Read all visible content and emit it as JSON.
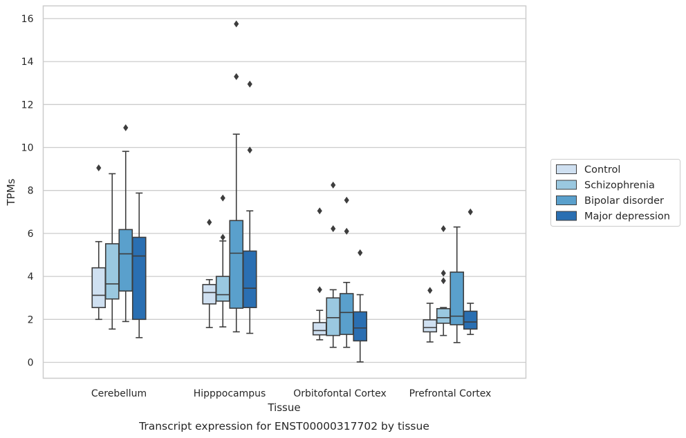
{
  "chart_data": {
    "type": "box",
    "title": "",
    "caption": "Transcript expression for ENST00000317702 by tissue",
    "xlabel": "Tissue",
    "ylabel": "TPMs",
    "ylim": [
      -0.75,
      16.5
    ],
    "yticks": [
      0,
      2,
      4,
      6,
      8,
      10,
      12,
      14,
      16
    ],
    "grid": true,
    "legend_position": "right",
    "categories": [
      "Cerebellum",
      "Hipppocampus",
      "Orbitofontal Cortex",
      "Prefrontal Cortex"
    ],
    "series": [
      {
        "name": "Control",
        "color": "#cfe0f1",
        "boxes": [
          {
            "whislo": 2.0,
            "q1": 2.55,
            "med": 3.12,
            "q3": 4.4,
            "whishi": 5.62,
            "fliers": [
              9.05
            ]
          },
          {
            "whislo": 1.62,
            "q1": 2.72,
            "med": 3.25,
            "q3": 3.62,
            "whishi": 3.85,
            "fliers": [
              6.52
            ]
          },
          {
            "whislo": 1.05,
            "q1": 1.28,
            "med": 1.48,
            "q3": 1.85,
            "whishi": 2.42,
            "fliers": [
              3.38,
              7.05
            ]
          },
          {
            "whislo": 0.95,
            "q1": 1.42,
            "med": 1.62,
            "q3": 1.98,
            "whishi": 2.75,
            "fliers": [
              3.35
            ]
          }
        ]
      },
      {
        "name": "Schizophrenia",
        "color": "#9ac8e0",
        "boxes": [
          {
            "whislo": 1.55,
            "q1": 2.95,
            "med": 3.65,
            "q3": 5.52,
            "whishi": 8.78,
            "fliers": []
          },
          {
            "whislo": 1.65,
            "q1": 2.85,
            "med": 3.15,
            "q3": 4.0,
            "whishi": 5.65,
            "fliers": [
              5.82,
              7.65
            ]
          },
          {
            "whislo": 0.7,
            "q1": 1.25,
            "med": 2.08,
            "q3": 3.0,
            "whishi": 3.38,
            "fliers": [
              6.22,
              8.25
            ]
          },
          {
            "whislo": 1.25,
            "q1": 1.82,
            "med": 2.08,
            "q3": 2.5,
            "whishi": 2.55,
            "fliers": [
              3.8,
              4.15,
              6.22
            ]
          }
        ]
      },
      {
        "name": "Bipolar disorder",
        "color": "#5aa0cc",
        "boxes": [
          {
            "whislo": 1.9,
            "q1": 3.32,
            "med": 5.05,
            "q3": 6.18,
            "whishi": 9.82,
            "fliers": [
              10.92
            ]
          },
          {
            "whislo": 1.42,
            "q1": 2.52,
            "med": 5.08,
            "q3": 6.6,
            "whishi": 10.62,
            "fliers": [
              13.3,
              15.75
            ]
          },
          {
            "whislo": 0.7,
            "q1": 1.3,
            "med": 2.32,
            "q3": 3.2,
            "whishi": 3.72,
            "fliers": [
              6.1,
              7.55
            ]
          },
          {
            "whislo": 0.92,
            "q1": 1.75,
            "med": 2.15,
            "q3": 4.2,
            "whishi": 6.3,
            "fliers": []
          }
        ]
      },
      {
        "name": "Major depression",
        "color": "#2a6fb2",
        "boxes": [
          {
            "whislo": 1.15,
            "q1": 2.0,
            "med": 4.95,
            "q3": 5.82,
            "whishi": 7.88,
            "fliers": []
          },
          {
            "whislo": 1.35,
            "q1": 2.55,
            "med": 3.45,
            "q3": 5.18,
            "whishi": 7.05,
            "fliers": [
              9.88,
              12.95
            ]
          },
          {
            "whislo": 0.02,
            "q1": 1.0,
            "med": 1.6,
            "q3": 2.35,
            "whishi": 3.15,
            "fliers": [
              5.1
            ]
          },
          {
            "whislo": 1.3,
            "q1": 1.55,
            "med": 1.88,
            "q3": 2.38,
            "whishi": 2.75,
            "fliers": [
              7.0
            ]
          }
        ]
      }
    ]
  }
}
